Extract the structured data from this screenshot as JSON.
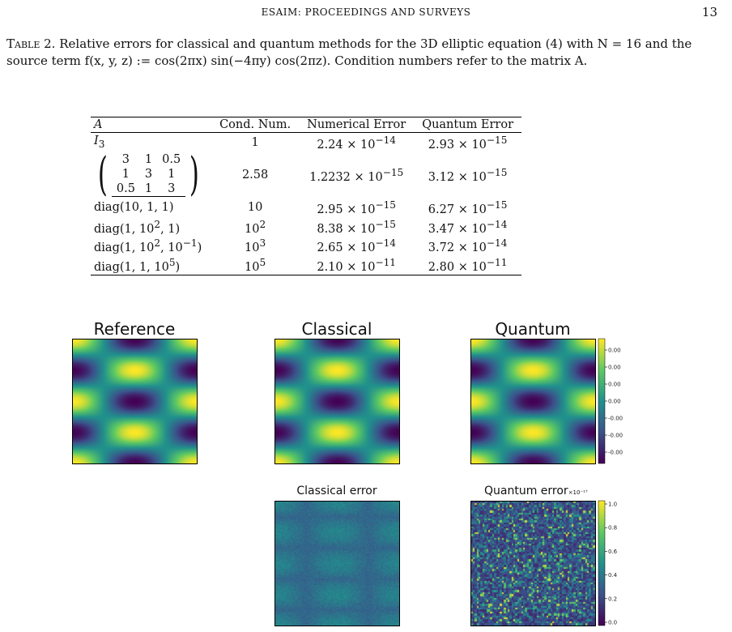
{
  "header": {
    "running_title": "ESAIM: PROCEEDINGS AND SURVEYS",
    "page_number": "13"
  },
  "caption": {
    "label": "Table 2.",
    "text": "Relative errors for classical and quantum methods for the 3D elliptic equation (4) with N = 16 and the source term f(x, y, z) := cos(2πx) sin(−4πy) cos(2πz). Condition numbers refer to the matrix A."
  },
  "table": {
    "headers": [
      "A",
      "Cond. Num.",
      "Numerical Error",
      "Quantum Error"
    ],
    "matrix_row": {
      "rows": [
        [
          "3",
          "1",
          "0.5"
        ],
        [
          "1",
          "3",
          "1"
        ],
        [
          "0.5",
          "1",
          "3"
        ]
      ],
      "cond": "2.58",
      "num_mant": "1.2232",
      "num_exp": "−15",
      "q_mant": "3.12",
      "q_exp": "−15"
    },
    "rows": [
      {
        "a": "I",
        "a_sub": "3",
        "cond": "1",
        "cond_exp": "",
        "num_mant": "2.24",
        "num_exp": "−14",
        "q_mant": "2.93",
        "q_exp": "−15"
      },
      {
        "a": "diag(10, 1, 1)",
        "cond": "10",
        "cond_exp": "",
        "num_mant": "2.95",
        "num_exp": "−15",
        "q_mant": "6.27",
        "q_exp": "−15"
      },
      {
        "a_pre": "diag(1, 10",
        "a_sup": "2",
        "a_post": ", 1)",
        "cond": "10",
        "cond_exp": "2",
        "num_mant": "8.38",
        "num_exp": "−15",
        "q_mant": "3.47",
        "q_exp": "−14"
      },
      {
        "a_pre": "diag(1, 10",
        "a_sup": "2",
        "a_mid": ", 10",
        "a_sup2": "−1",
        "a_post": ")",
        "cond": "10",
        "cond_exp": "3",
        "num_mant": "2.65",
        "num_exp": "−14",
        "q_mant": "3.72",
        "q_exp": "−14"
      },
      {
        "a_pre": "diag(1, 1, 10",
        "a_sup": "5",
        "a_post": ")",
        "cond": "10",
        "cond_exp": "5",
        "num_mant": "2.10",
        "num_exp": "−11",
        "q_mant": "2.80",
        "q_exp": "−11"
      }
    ]
  },
  "chart_data": [
    {
      "type": "heatmap",
      "title": "Reference",
      "pattern": "cos(2πx)·sin(−4πy) slice",
      "colormap": "viridis"
    },
    {
      "type": "heatmap",
      "title": "Classical",
      "pattern": "cos(2πx)·sin(−4πy) slice",
      "colormap": "viridis"
    },
    {
      "type": "heatmap",
      "title": "Quantum",
      "pattern": "cos(2πx)·sin(−4πy) slice",
      "colormap": "viridis",
      "colorbar_ticks": [
        "0.00",
        "0.00",
        "0.00",
        "0.00",
        "-0.00",
        "-0.00",
        "-0.00"
      ]
    },
    {
      "type": "heatmap",
      "title": "Classical error",
      "pattern": "smooth error with noise",
      "colormap": "viridis"
    },
    {
      "type": "heatmap",
      "title": "Quantum error",
      "pattern": "random noise",
      "colormap": "viridis",
      "colorbar_multiplier": "×10⁻¹⁷",
      "colorbar_ticks": [
        "1.0",
        "0.8",
        "0.6",
        "0.4",
        "0.2",
        "0.0"
      ]
    }
  ]
}
